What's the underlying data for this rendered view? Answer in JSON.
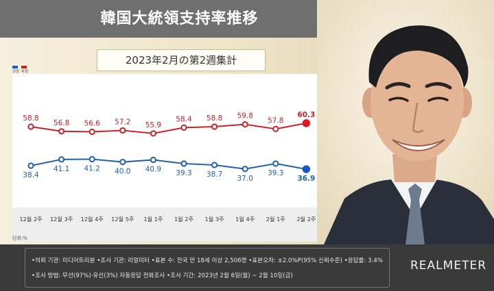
{
  "header": {
    "title": "韓国大統領支持率推移"
  },
  "subtitle": "2023年2月の第2週集計",
  "unit_label": "단위:%",
  "legend": {
    "positive": "긍정",
    "negative": "부정"
  },
  "footer": {
    "line1": "•의뢰 기관: 미디어트리뷴 •조사 기관: 리얼미터 •표본 수: 전국 만 18세 이상 2,506명 •표본오차: ±2.0%P(95% 신뢰수준) •응답률: 3.4%",
    "line2": "•조사 방법: 무선(97%)·유선(3%) 자동응답 전화조사 •조사 기간: 2023년 2월 6일(월) ~ 2월 10일(금)",
    "logo": "REALMETER"
  },
  "colors": {
    "negative": "#cc2027",
    "positive": "#1f5fad",
    "highlight_negative": "#e8151d",
    "highlight_positive": "#1a56c8"
  },
  "chart_data": {
    "type": "line",
    "categories": [
      "12월 2주",
      "12월 3주",
      "12월 4주",
      "12월 5주",
      "1월 1주",
      "1월 2주",
      "1월 3주",
      "1월 4주",
      "2월 1주",
      "2월 2주"
    ],
    "series": [
      {
        "name": "부정",
        "values": [
          58.8,
          56.8,
          56.6,
          57.2,
          55.9,
          58.4,
          58.8,
          59.8,
          57.8,
          60.3
        ]
      },
      {
        "name": "긍정",
        "values": [
          38.4,
          41.1,
          41.2,
          40.0,
          40.9,
          39.3,
          38.7,
          37.0,
          39.3,
          36.9
        ]
      }
    ],
    "grid": false,
    "legend_position": "top-left"
  }
}
